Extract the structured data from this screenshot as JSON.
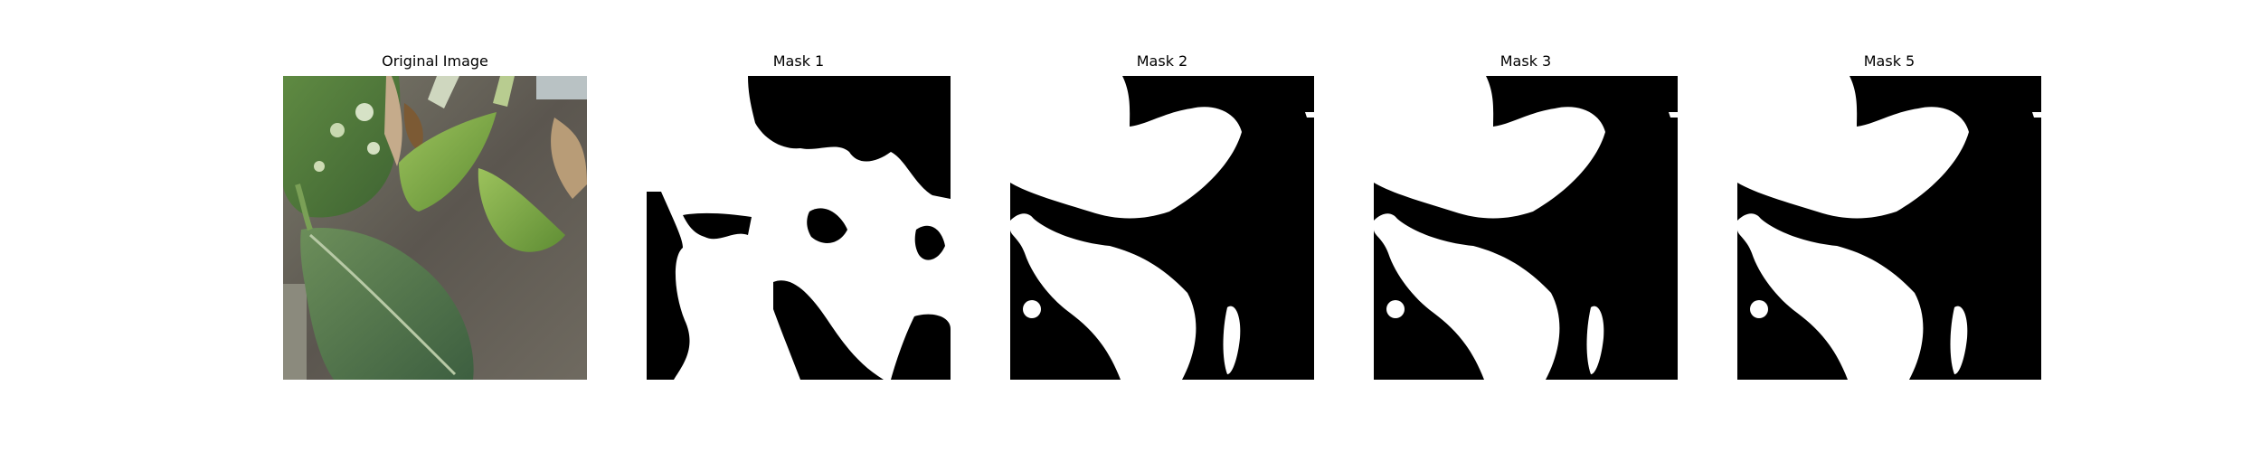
{
  "figure": {
    "panels": [
      {
        "title": "Original Image",
        "kind": "photo",
        "subject": "green variegated plant leaves"
      },
      {
        "title": "Mask 1",
        "kind": "binary-mask"
      },
      {
        "title": "Mask 2",
        "kind": "binary-mask"
      },
      {
        "title": "Mask 3",
        "kind": "binary-mask"
      },
      {
        "title": "Mask 5",
        "kind": "binary-mask"
      }
    ]
  },
  "colors": {
    "mask_foreground": "#ffffff",
    "mask_background": "#000000",
    "leaf_dark": "#3f6a36",
    "leaf_light": "#86ad5c",
    "background_soil": "#5b564f"
  }
}
